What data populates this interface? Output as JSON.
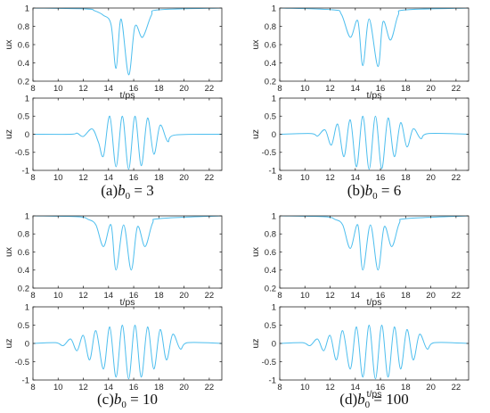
{
  "colors": {
    "line": "#4DBEEE",
    "axis": "#262626",
    "background": "#ffffff"
  },
  "panels": [
    {
      "caption_prefix": "(a)",
      "b0_value": "3"
    },
    {
      "caption_prefix": "(b)",
      "b0_value": "6"
    },
    {
      "caption_prefix": "(c)",
      "b0_value": "10"
    },
    {
      "caption_prefix": "(d)",
      "b0_value": "100"
    }
  ],
  "chart_data": [
    {
      "type": "line",
      "panel": "a",
      "xlabel": "t/ps",
      "ylabel": "ux",
      "xlim": [
        8,
        23
      ],
      "ylim": [
        0.2,
        1
      ],
      "xticks": [
        8,
        10,
        12,
        14,
        16,
        18,
        20,
        22
      ],
      "yticks": [
        0.2,
        0.4,
        0.6,
        0.8,
        1
      ],
      "grid": false,
      "legend": "none",
      "series": [
        {
          "x": [
            8,
            12.2,
            12.9,
            13.6,
            14.2,
            14.6,
            15.0,
            15.6,
            16.1,
            16.7,
            17.4,
            18.0,
            23
          ],
          "y": [
            1,
            0.99,
            0.97,
            0.92,
            0.82,
            0.34,
            0.88,
            0.27,
            0.8,
            0.68,
            0.92,
            0.98,
            1
          ]
        }
      ]
    },
    {
      "type": "line",
      "panel": "a",
      "xlabel": "",
      "ylabel": "uz",
      "xlim": [
        8,
        23
      ],
      "ylim": [
        -1,
        1
      ],
      "xticks": [
        8,
        10,
        12,
        14,
        16,
        18,
        20,
        22
      ],
      "yticks": [
        -1,
        -0.5,
        0,
        0.5,
        1
      ],
      "grid": false,
      "legend": "none",
      "series": [
        {
          "x": [
            8,
            11.0,
            11.5,
            12.0,
            12.7,
            13.2,
            13.6,
            14.1,
            14.6,
            15.1,
            15.6,
            16.1,
            16.6,
            17.1,
            17.6,
            18.1,
            18.7,
            19.3,
            23
          ],
          "y": [
            0,
            0,
            0.03,
            -0.06,
            0.15,
            -0.22,
            -0.6,
            0.5,
            -0.9,
            0.5,
            -0.97,
            0.5,
            -0.87,
            0.45,
            -0.55,
            0.25,
            -0.2,
            -0.02,
            0
          ]
        }
      ]
    },
    {
      "type": "line",
      "panel": "b",
      "xlabel": "t/ps",
      "ylabel": "ux",
      "xlim": [
        8,
        23
      ],
      "ylim": [
        0.2,
        1
      ],
      "xticks": [
        8,
        10,
        12,
        14,
        16,
        18,
        20,
        22
      ],
      "yticks": [
        0.2,
        0.4,
        0.6,
        0.8,
        1
      ],
      "grid": false,
      "legend": "none",
      "series": [
        {
          "x": [
            8,
            12.2,
            12.9,
            13.6,
            14.2,
            14.6,
            15.1,
            15.8,
            16.2,
            16.8,
            17.4,
            18.0,
            23
          ],
          "y": [
            1,
            0.98,
            0.93,
            0.68,
            0.86,
            0.37,
            0.88,
            0.36,
            0.85,
            0.65,
            0.92,
            0.98,
            1
          ]
        }
      ]
    },
    {
      "type": "line",
      "panel": "b",
      "xlabel": "",
      "ylabel": "uz",
      "xlim": [
        8,
        23
      ],
      "ylim": [
        -1,
        1
      ],
      "xticks": [
        8,
        10,
        12,
        14,
        16,
        18,
        20,
        22
      ],
      "yticks": [
        -1,
        -0.5,
        0,
        0.5,
        1
      ],
      "grid": false,
      "legend": "none",
      "series": [
        {
          "x": [
            8,
            10.5,
            11.0,
            11.6,
            12.1,
            12.6,
            13.1,
            13.6,
            14.1,
            14.6,
            15.1,
            15.6,
            16.1,
            16.6,
            17.1,
            17.6,
            18.1,
            18.6,
            19.2,
            19.8,
            23
          ],
          "y": [
            0,
            0.02,
            -0.05,
            0.12,
            -0.3,
            0.28,
            -0.62,
            0.4,
            -0.9,
            0.5,
            -0.97,
            0.5,
            -0.95,
            0.45,
            -0.62,
            0.32,
            -0.35,
            0.15,
            -0.12,
            0.02,
            0
          ]
        }
      ]
    },
    {
      "type": "line",
      "panel": "c",
      "xlabel": "t/ps",
      "ylabel": "ux",
      "xlim": [
        8,
        23
      ],
      "ylim": [
        0.2,
        1
      ],
      "xticks": [
        8,
        10,
        12,
        14,
        16,
        18,
        20,
        22
      ],
      "yticks": [
        0.2,
        0.4,
        0.6,
        0.8,
        1
      ],
      "grid": false,
      "legend": "none",
      "series": [
        {
          "x": [
            8,
            11.6,
            12.4,
            13.0,
            13.6,
            14.2,
            14.6,
            15.2,
            15.8,
            16.3,
            16.9,
            17.5,
            18.1,
            23
          ],
          "y": [
            1,
            0.99,
            0.96,
            0.9,
            0.66,
            0.9,
            0.4,
            0.9,
            0.4,
            0.88,
            0.66,
            0.92,
            0.97,
            1
          ]
        }
      ]
    },
    {
      "type": "line",
      "panel": "c",
      "xlabel": "",
      "ylabel": "uz",
      "xlim": [
        8,
        23
      ],
      "ylim": [
        -1,
        1
      ],
      "xticks": [
        8,
        10,
        12,
        14,
        16,
        18,
        20,
        22
      ],
      "yticks": [
        -1,
        -0.5,
        0,
        0.5,
        1
      ],
      "grid": false,
      "legend": "none",
      "series": [
        {
          "x": [
            8,
            9.8,
            10.4,
            11.0,
            11.5,
            12.0,
            12.5,
            13.0,
            13.6,
            14.1,
            14.6,
            15.1,
            15.6,
            16.1,
            16.6,
            17.1,
            17.6,
            18.1,
            18.6,
            19.1,
            19.7,
            20.3,
            23
          ],
          "y": [
            0,
            0.02,
            -0.06,
            0.12,
            -0.2,
            0.22,
            -0.45,
            0.35,
            -0.7,
            0.45,
            -0.92,
            0.5,
            -0.97,
            0.5,
            -0.92,
            0.45,
            -0.7,
            0.38,
            -0.45,
            0.25,
            -0.15,
            0.02,
            0
          ]
        }
      ]
    },
    {
      "type": "line",
      "panel": "d",
      "xlabel": "t/ps",
      "ylabel": "ux",
      "xlim": [
        8,
        23
      ],
      "ylim": [
        0.2,
        1
      ],
      "xticks": [
        8,
        10,
        12,
        14,
        16,
        18,
        20,
        22
      ],
      "yticks": [
        0.2,
        0.4,
        0.6,
        0.8,
        1
      ],
      "grid": false,
      "legend": "none",
      "series": [
        {
          "x": [
            8,
            11.6,
            12.4,
            13.0,
            13.6,
            14.2,
            14.6,
            15.2,
            15.8,
            16.3,
            16.9,
            17.5,
            18.1,
            23
          ],
          "y": [
            1,
            0.99,
            0.96,
            0.9,
            0.64,
            0.9,
            0.4,
            0.9,
            0.4,
            0.88,
            0.66,
            0.92,
            0.97,
            1
          ]
        }
      ]
    },
    {
      "type": "line",
      "panel": "d",
      "xlabel": "t/ps",
      "ylabel": "uz",
      "xlim": [
        8,
        23
      ],
      "ylim": [
        -1,
        1
      ],
      "xticks": [
        8,
        10,
        12,
        14,
        16,
        18,
        20,
        22
      ],
      "yticks": [
        -1,
        -0.5,
        0,
        0.5,
        1
      ],
      "grid": false,
      "legend": "none",
      "series": [
        {
          "x": [
            8,
            9.8,
            10.4,
            11.0,
            11.5,
            12.0,
            12.5,
            13.0,
            13.6,
            14.1,
            14.6,
            15.1,
            15.6,
            16.1,
            16.6,
            17.1,
            17.6,
            18.1,
            18.6,
            19.1,
            19.7,
            20.3,
            23
          ],
          "y": [
            0,
            0.02,
            -0.06,
            0.12,
            -0.2,
            0.22,
            -0.45,
            0.35,
            -0.7,
            0.45,
            -0.92,
            0.5,
            -0.97,
            0.5,
            -0.92,
            0.45,
            -0.7,
            0.38,
            -0.45,
            0.25,
            -0.15,
            0.02,
            0
          ]
        }
      ]
    }
  ]
}
